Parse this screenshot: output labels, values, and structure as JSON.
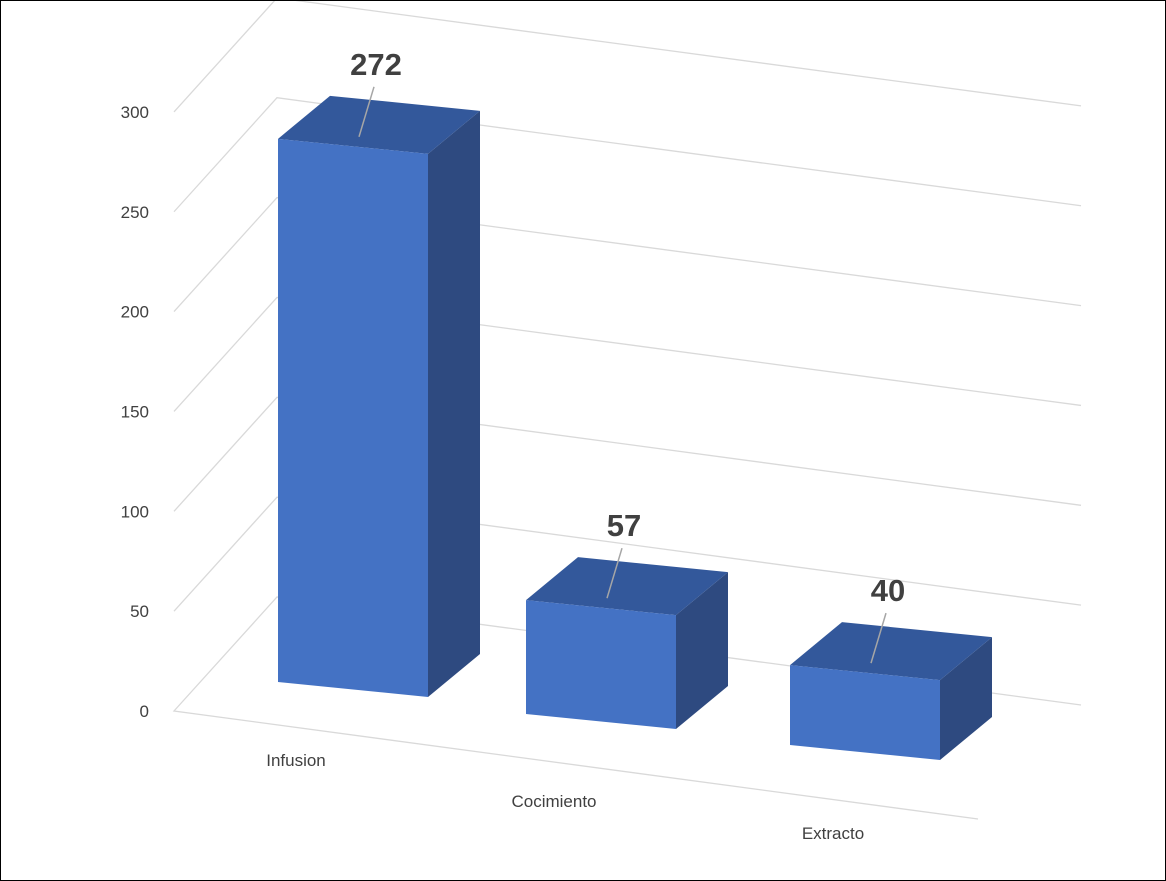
{
  "chart_data": {
    "type": "bar",
    "categories": [
      "Infusion",
      "Cocimiento",
      "Extracto"
    ],
    "values": [
      272,
      57,
      40
    ],
    "data_labels": [
      "272",
      "57",
      "40"
    ],
    "yticks": [
      "0",
      "50",
      "100",
      "150",
      "200",
      "250",
      "300"
    ],
    "ylim": [
      0,
      300
    ],
    "title": "",
    "xlabel": "",
    "ylabel": "",
    "grid": true,
    "legend": false,
    "style": "3d-column",
    "colors": {
      "bar_front": "#4472C4",
      "bar_side": "#2E4A80",
      "bar_top": "#33589B",
      "gridline": "#D9D9D9",
      "text": "#404040",
      "leader_line": "#A6A6A6"
    }
  }
}
